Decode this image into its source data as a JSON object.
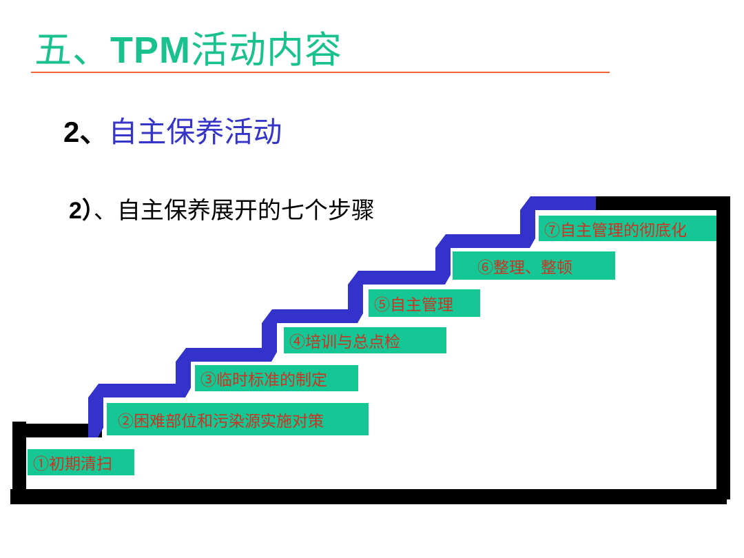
{
  "title": {
    "prefix": "五、",
    "bold": "TPM",
    "suffix": "活动内容"
  },
  "section": {
    "number": "2、",
    "label": "自主保养活动"
  },
  "subsection": {
    "number": "2）",
    "label": "、自主保养展开的七个步骤"
  },
  "steps": [
    "①初期清扫",
    "②困难部位和污染源实施对策",
    "③临时标准的制定",
    "④培训与总点检",
    "⑤自主管理",
    "⑥整理、整顿",
    "⑦自主管理的彻底化"
  ],
  "colors": {
    "title": "#19c18f",
    "rule": "#ee6633",
    "section": "#3535c8",
    "stairs": "#3333cc",
    "frame": "#000000",
    "step_box": "#14c794",
    "step_text": "#cc3322"
  }
}
